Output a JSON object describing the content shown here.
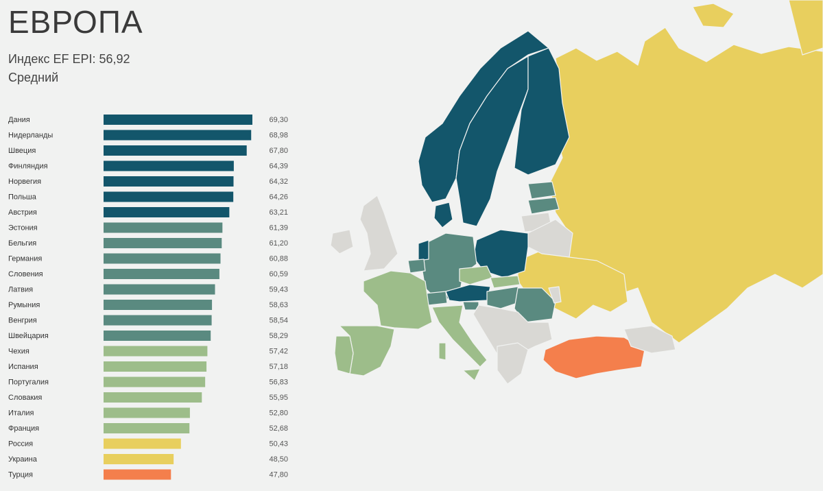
{
  "header": {
    "title": "ЕВРОПА",
    "index_label": "Индекс EF EPI: 56,92",
    "level_label": "Средний"
  },
  "colors": {
    "very_high": "#13566b",
    "high": "#5a8a80",
    "moderate": "#9dbd8a",
    "low": "#e8cf5e",
    "very_low": "#f47f4c",
    "no_data": "#d9d8d4",
    "background": "#f1f2f1"
  },
  "chart_data": {
    "type": "bar",
    "orientation": "horizontal",
    "title": "",
    "categories": [
      "Дания",
      "Нидерланды",
      "Швеция",
      "Финляндия",
      "Норвегия",
      "Польша",
      "Австрия",
      "Эстония",
      "Бельгия",
      "Германия",
      "Словения",
      "Латвия",
      "Румыния",
      "Венгрия",
      "Швейцария",
      "Чехия",
      "Испания",
      "Португалия",
      "Словакия",
      "Италия",
      "Франция",
      "Россия",
      "Украина",
      "Турция"
    ],
    "values": [
      69.3,
      68.98,
      67.8,
      64.39,
      64.32,
      64.26,
      63.21,
      61.39,
      61.2,
      60.88,
      60.59,
      59.43,
      58.63,
      58.54,
      58.29,
      57.42,
      57.18,
      56.83,
      55.95,
      52.8,
      52.68,
      50.43,
      48.5,
      47.8
    ],
    "value_labels": [
      "69,30",
      "68,98",
      "67,80",
      "64,39",
      "64,32",
      "64,26",
      "63,21",
      "61,39",
      "61,20",
      "60,88",
      "60,59",
      "59,43",
      "58,63",
      "58,54",
      "58,29",
      "57,42",
      "57,18",
      "56,83",
      "55,95",
      "52,80",
      "52,68",
      "50,43",
      "48,50",
      "47,80"
    ],
    "levels": [
      "very_high",
      "very_high",
      "very_high",
      "very_high",
      "very_high",
      "very_high",
      "very_high",
      "high",
      "high",
      "high",
      "high",
      "high",
      "high",
      "high",
      "high",
      "moderate",
      "moderate",
      "moderate",
      "moderate",
      "moderate",
      "moderate",
      "low",
      "low",
      "very_low"
    ],
    "xlim": [
      30,
      70
    ],
    "grid": false,
    "legend": "none"
  }
}
